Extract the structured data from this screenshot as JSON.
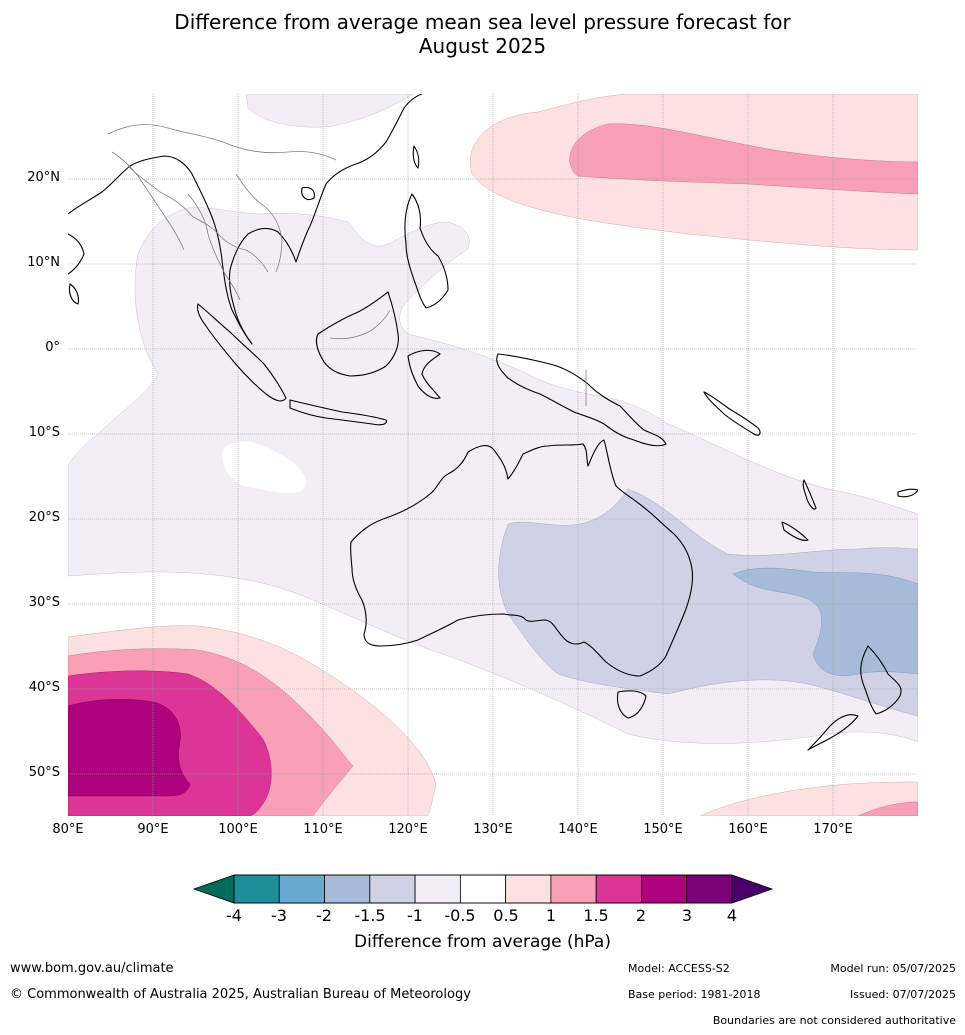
{
  "title_line1": "Difference from average mean sea level pressure forecast for",
  "title_line2": "August 2025",
  "map": {
    "lat_labels": [
      "20°N",
      "10°N",
      "0°",
      "10°S",
      "20°S",
      "30°S",
      "40°S",
      "50°S"
    ],
    "lon_labels": [
      "80°E",
      "90°E",
      "100°E",
      "110°E",
      "120°E",
      "130°E",
      "140°E",
      "150°E",
      "160°E",
      "170°E"
    ],
    "lat_range": [
      -55,
      30
    ],
    "lon_range": [
      80,
      180
    ],
    "grid": true
  },
  "colorbar": {
    "title": "Difference from average (hPa)",
    "tick_labels": [
      "-4",
      "-3",
      "-2",
      "-1.5",
      "-1",
      "-0.5",
      "0.5",
      "1",
      "1.5",
      "2",
      "3",
      "4"
    ],
    "colors": [
      "#1c8f9b",
      "#67a9cf",
      "#a6bbd9",
      "#d0d1e6",
      "#f3eef6",
      "#ffffff",
      "#fde0e0",
      "#f99fb8",
      "#dd3497",
      "#ae017e",
      "#7a0177"
    ],
    "low_extend_color": "#016c59",
    "high_extend_color": "#49006a"
  },
  "footer": {
    "website": "www.bom.gov.au/climate",
    "copyright": "© Commonwealth of Australia 2025, Australian Bureau of Meteorology",
    "model": "Model: ACCESS-S2",
    "base_period": "Base period: 1981-2018",
    "model_run": "Model run: 05/07/2025",
    "issued": "Issued: 07/07/2025",
    "disclaimer": "Boundaries are not considered authoritative"
  }
}
